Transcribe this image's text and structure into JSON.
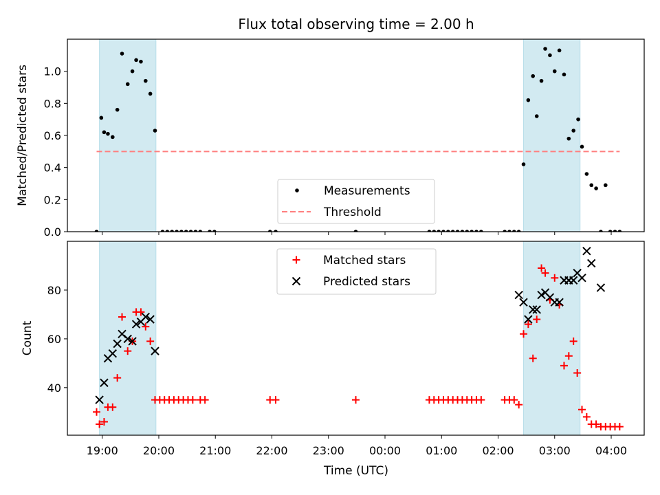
{
  "chart_data": [
    {
      "type": "scatter",
      "title": "Flux total observing time = 2.00 h",
      "xlabel": "",
      "ylabel": "Matched/Predicted stars",
      "ylim": [
        0,
        1.2
      ],
      "yticks": [
        "0.0",
        "0.2",
        "0.4",
        "0.6",
        "0.8",
        "1.0"
      ],
      "ytick_values": [
        0.0,
        0.2,
        0.4,
        0.6,
        0.8,
        1.0
      ],
      "legend_position": "lower-center",
      "highlight_spans": [
        {
          "start": "18:57",
          "end": "19:57",
          "color": "#add8e6"
        },
        {
          "start": "02:27",
          "end": "03:27",
          "color": "#add8e6"
        }
      ],
      "series": [
        {
          "name": "Measurements",
          "kind": "points",
          "color": "#000000",
          "points": [
            [
              "18:54",
              0.0
            ],
            [
              "18:59",
              0.71
            ],
            [
              "19:02",
              0.62
            ],
            [
              "19:06",
              0.61
            ],
            [
              "19:11",
              0.59
            ],
            [
              "19:16",
              0.76
            ],
            [
              "19:21",
              1.11
            ],
            [
              "19:27",
              0.92
            ],
            [
              "19:32",
              1.0
            ],
            [
              "19:36",
              1.07
            ],
            [
              "19:41",
              1.06
            ],
            [
              "19:46",
              0.94
            ],
            [
              "19:51",
              0.86
            ],
            [
              "19:56",
              0.63
            ],
            [
              "20:04",
              0.0
            ],
            [
              "20:09",
              0.0
            ],
            [
              "20:14",
              0.0
            ],
            [
              "20:19",
              0.0
            ],
            [
              "20:24",
              0.0
            ],
            [
              "20:29",
              0.0
            ],
            [
              "20:34",
              0.0
            ],
            [
              "20:39",
              0.0
            ],
            [
              "20:44",
              0.0
            ],
            [
              "20:54",
              0.0
            ],
            [
              "20:59",
              0.0
            ],
            [
              "21:58",
              0.0
            ],
            [
              "22:04",
              0.0
            ],
            [
              "23:29",
              0.0
            ],
            [
              "00:47",
              0.0
            ],
            [
              "00:52",
              0.0
            ],
            [
              "00:57",
              0.0
            ],
            [
              "01:02",
              0.0
            ],
            [
              "01:07",
              0.0
            ],
            [
              "01:12",
              0.0
            ],
            [
              "01:17",
              0.0
            ],
            [
              "01:22",
              0.0
            ],
            [
              "01:27",
              0.0
            ],
            [
              "01:32",
              0.0
            ],
            [
              "01:37",
              0.0
            ],
            [
              "01:42",
              0.0
            ],
            [
              "02:07",
              0.0
            ],
            [
              "02:12",
              0.0
            ],
            [
              "02:17",
              0.0
            ],
            [
              "02:22",
              0.0
            ],
            [
              "02:27",
              0.42
            ],
            [
              "02:32",
              0.82
            ],
            [
              "02:37",
              0.97
            ],
            [
              "02:41",
              0.72
            ],
            [
              "02:46",
              0.94
            ],
            [
              "02:50",
              1.14
            ],
            [
              "02:55",
              1.1
            ],
            [
              "03:00",
              1.0
            ],
            [
              "03:05",
              1.13
            ],
            [
              "03:10",
              0.98
            ],
            [
              "03:15",
              0.58
            ],
            [
              "03:20",
              0.63
            ],
            [
              "03:25",
              0.7
            ],
            [
              "03:29",
              0.53
            ],
            [
              "03:34",
              0.36
            ],
            [
              "03:39",
              0.29
            ],
            [
              "03:44",
              0.27
            ],
            [
              "03:49",
              0.0
            ],
            [
              "03:54",
              0.29
            ],
            [
              "03:59",
              0.0
            ],
            [
              "04:04",
              0.0
            ],
            [
              "04:09",
              0.0
            ]
          ]
        },
        {
          "name": "Threshold",
          "kind": "dashed-line",
          "color": "#ff7f7f",
          "points": [
            [
              "18:54",
              0.5
            ],
            [
              "04:09",
              0.5
            ]
          ]
        }
      ]
    },
    {
      "type": "scatter",
      "title": "",
      "xlabel": "Time (UTC)",
      "ylabel": "Count",
      "ylim": [
        20.5,
        100
      ],
      "yticks": [
        "40",
        "60",
        "80"
      ],
      "ytick_values": [
        40,
        60,
        80
      ],
      "x_axis": {
        "ticks": [
          "19:00",
          "20:00",
          "21:00",
          "22:00",
          "23:00",
          "00:00",
          "01:00",
          "02:00",
          "03:00",
          "04:00"
        ],
        "range": [
          "18:23",
          "04:35"
        ]
      },
      "legend_position": "upper-center",
      "highlight_spans": [
        {
          "start": "18:57",
          "end": "19:57",
          "color": "#add8e6"
        },
        {
          "start": "02:27",
          "end": "03:27",
          "color": "#add8e6"
        }
      ],
      "series": [
        {
          "name": "Matched stars",
          "kind": "plus",
          "color": "#ff0000",
          "points": [
            [
              "18:54",
              30
            ],
            [
              "18:57",
              25
            ],
            [
              "19:02",
              26
            ],
            [
              "19:06",
              32
            ],
            [
              "19:11",
              32
            ],
            [
              "19:16",
              44
            ],
            [
              "19:21",
              69
            ],
            [
              "19:27",
              55
            ],
            [
              "19:32",
              59
            ],
            [
              "19:36",
              71
            ],
            [
              "19:41",
              71
            ],
            [
              "19:46",
              65
            ],
            [
              "19:51",
              59
            ],
            [
              "19:56",
              35
            ],
            [
              "20:01",
              35
            ],
            [
              "20:06",
              35
            ],
            [
              "20:11",
              35
            ],
            [
              "20:16",
              35
            ],
            [
              "20:21",
              35
            ],
            [
              "20:26",
              35
            ],
            [
              "20:31",
              35
            ],
            [
              "20:36",
              35
            ],
            [
              "20:44",
              35
            ],
            [
              "20:49",
              35
            ],
            [
              "21:58",
              35
            ],
            [
              "22:04",
              35
            ],
            [
              "23:29",
              35
            ],
            [
              "00:47",
              35
            ],
            [
              "00:52",
              35
            ],
            [
              "00:57",
              35
            ],
            [
              "01:02",
              35
            ],
            [
              "01:07",
              35
            ],
            [
              "01:12",
              35
            ],
            [
              "01:17",
              35
            ],
            [
              "01:22",
              35
            ],
            [
              "01:27",
              35
            ],
            [
              "01:32",
              35
            ],
            [
              "01:37",
              35
            ],
            [
              "01:42",
              35
            ],
            [
              "02:07",
              35
            ],
            [
              "02:12",
              35
            ],
            [
              "02:17",
              35
            ],
            [
              "02:22",
              33
            ],
            [
              "02:27",
              62
            ],
            [
              "02:32",
              66
            ],
            [
              "02:37",
              52
            ],
            [
              "02:41",
              68
            ],
            [
              "02:46",
              89
            ],
            [
              "02:50",
              87
            ],
            [
              "02:55",
              76
            ],
            [
              "03:00",
              85
            ],
            [
              "03:05",
              74
            ],
            [
              "03:10",
              49
            ],
            [
              "03:15",
              53
            ],
            [
              "03:20",
              59
            ],
            [
              "03:24",
              46
            ],
            [
              "03:29",
              31
            ],
            [
              "03:34",
              28
            ],
            [
              "03:39",
              25
            ],
            [
              "03:44",
              25
            ],
            [
              "03:49",
              24
            ],
            [
              "03:54",
              24
            ],
            [
              "03:59",
              24
            ],
            [
              "04:04",
              24
            ],
            [
              "04:09",
              24
            ]
          ]
        },
        {
          "name": "Predicted stars",
          "kind": "x",
          "color": "#000000",
          "points": [
            [
              "18:57",
              35
            ],
            [
              "19:02",
              42
            ],
            [
              "19:06",
              52
            ],
            [
              "19:11",
              54
            ],
            [
              "19:16",
              58
            ],
            [
              "19:21",
              62
            ],
            [
              "19:27",
              60
            ],
            [
              "19:32",
              59
            ],
            [
              "19:36",
              66
            ],
            [
              "19:41",
              67
            ],
            [
              "19:46",
              69
            ],
            [
              "19:51",
              68
            ],
            [
              "19:56",
              55
            ],
            [
              "02:22",
              78
            ],
            [
              "02:27",
              75
            ],
            [
              "02:32",
              68
            ],
            [
              "02:37",
              72
            ],
            [
              "02:41",
              72
            ],
            [
              "02:46",
              78
            ],
            [
              "02:50",
              79
            ],
            [
              "02:55",
              77
            ],
            [
              "03:00",
              75
            ],
            [
              "03:05",
              75
            ],
            [
              "03:10",
              84
            ],
            [
              "03:15",
              84
            ],
            [
              "03:20",
              84
            ],
            [
              "03:24",
              87
            ],
            [
              "03:29",
              85
            ],
            [
              "03:34",
              96
            ],
            [
              "03:39",
              91
            ],
            [
              "03:49",
              81
            ]
          ]
        }
      ]
    }
  ]
}
